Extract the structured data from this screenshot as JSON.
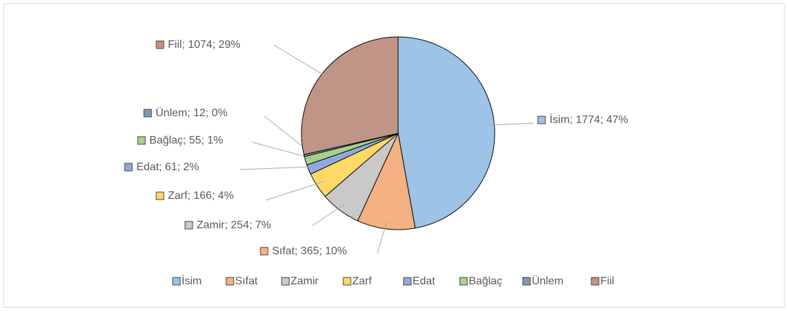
{
  "chart_data": {
    "type": "pie",
    "categories": [
      "İsim",
      "Sıfat",
      "Zamir",
      "Zarf",
      "Edat",
      "Bağlaç",
      "Ünlem",
      "Fiil"
    ],
    "values": [
      1774,
      365,
      254,
      166,
      61,
      55,
      12,
      1074
    ],
    "value_labels": [
      "İsim; 1774; 47%",
      "Sıfat; 365; 10%",
      "Zamir; 254; 7%",
      "Zarf; 166; 4%",
      "Edat; 61; 2%",
      "Bağlaç; 55; 1%",
      "Ünlem; 12; 0%",
      "Fiil; 1074; 29%"
    ],
    "colors": [
      "#9dc3e6",
      "#f4b183",
      "#c9c9c9",
      "#ffd966",
      "#8faadc",
      "#a9d18e",
      "#8497b0",
      "#c09486"
    ],
    "legend": "bottom"
  }
}
